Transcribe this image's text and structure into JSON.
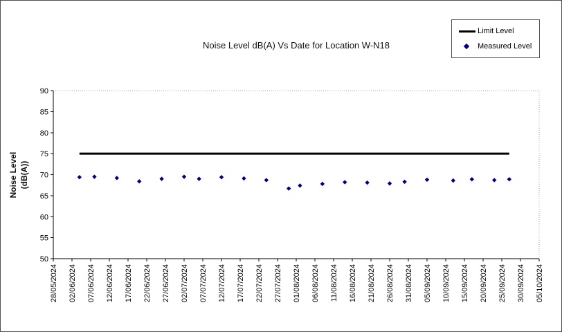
{
  "chart_data": {
    "type": "scatter",
    "title": "Noise Level dB(A) Vs Date for Location W-N18",
    "grid": "off",
    "y_axis": {
      "title_line1": "Noise Level",
      "title_line2": "(dB(A))",
      "min": 50,
      "max": 90,
      "step": 5,
      "tick_labels": [
        "50",
        "55",
        "60",
        "65",
        "70",
        "75",
        "80",
        "85",
        "90"
      ]
    },
    "x_axis": {
      "tick_labels": [
        "28/05/2024",
        "02/06/2024",
        "07/06/2024",
        "12/06/2024",
        "17/06/2024",
        "22/06/2024",
        "27/06/2024",
        "02/07/2024",
        "07/07/2024",
        "12/07/2024",
        "17/07/2024",
        "22/07/2024",
        "27/07/2024",
        "01/08/2024",
        "06/08/2024",
        "11/08/2024",
        "16/08/2024",
        "21/08/2024",
        "26/08/2024",
        "31/08/2024",
        "05/09/2024",
        "10/09/2024",
        "15/09/2024",
        "20/09/2024",
        "25/09/2024",
        "30/09/2024",
        "05/10/2024"
      ]
    },
    "legend": {
      "position": "top-right"
    },
    "series": [
      {
        "name": "Limit Level",
        "type": "line",
        "color": "#000000",
        "value": 75,
        "start_date": "04/06/2024",
        "end_date": "27/09/2024"
      },
      {
        "name": "Measured Level",
        "type": "scatter",
        "marker": "diamond",
        "color": "#000080",
        "points": [
          {
            "date": "04/06/2024",
            "value": 69.4
          },
          {
            "date": "08/06/2024",
            "value": 69.5
          },
          {
            "date": "14/06/2024",
            "value": 69.2
          },
          {
            "date": "20/06/2024",
            "value": 68.4
          },
          {
            "date": "26/06/2024",
            "value": 69.0
          },
          {
            "date": "02/07/2024",
            "value": 69.5
          },
          {
            "date": "06/07/2024",
            "value": 69.0
          },
          {
            "date": "12/07/2024",
            "value": 69.4
          },
          {
            "date": "18/07/2024",
            "value": 69.1
          },
          {
            "date": "24/07/2024",
            "value": 68.7
          },
          {
            "date": "30/07/2024",
            "value": 66.7
          },
          {
            "date": "02/08/2024",
            "value": 67.4
          },
          {
            "date": "08/08/2024",
            "value": 67.8
          },
          {
            "date": "14/08/2024",
            "value": 68.2
          },
          {
            "date": "20/08/2024",
            "value": 68.1
          },
          {
            "date": "26/08/2024",
            "value": 67.9
          },
          {
            "date": "30/08/2024",
            "value": 68.3
          },
          {
            "date": "05/09/2024",
            "value": 68.8
          },
          {
            "date": "12/09/2024",
            "value": 68.6
          },
          {
            "date": "17/09/2024",
            "value": 68.9
          },
          {
            "date": "23/09/2024",
            "value": 68.7
          },
          {
            "date": "27/09/2024",
            "value": 68.9
          }
        ]
      }
    ]
  }
}
